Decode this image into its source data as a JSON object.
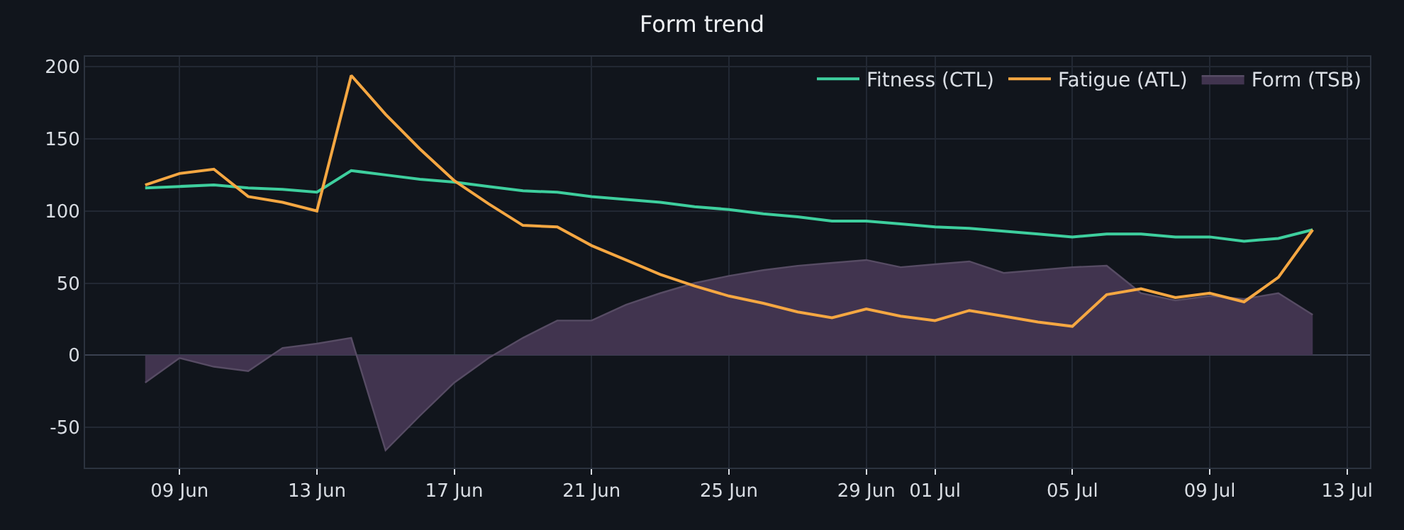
{
  "chart_data": {
    "type": "line",
    "title": "Form trend",
    "x": [
      "--06-08",
      "--06-09",
      "--06-10",
      "--06-11",
      "--06-12",
      "--06-13",
      "--06-14",
      "--06-15",
      "--06-16",
      "--06-17",
      "--06-18",
      "--06-19",
      "--06-20",
      "--06-21",
      "--06-22",
      "--06-23",
      "--06-24",
      "--06-25",
      "--06-26",
      "--06-27",
      "--06-28",
      "--06-29",
      "--06-30",
      "--07-01",
      "--07-02",
      "--07-03",
      "--07-04",
      "--07-05",
      "--07-06",
      "--07-07",
      "--07-08",
      "--07-09",
      "--07-10",
      "--07-11",
      "--07-12"
    ],
    "series": [
      {
        "name": "Fitness (CTL)",
        "color": "#3ecf9e",
        "values": [
          116,
          117,
          118,
          116,
          115,
          113,
          128,
          125,
          122,
          120,
          117,
          114,
          113,
          110,
          108,
          106,
          103,
          101,
          98,
          96,
          93,
          93,
          91,
          89,
          88,
          86,
          84,
          82,
          84,
          84,
          82,
          82,
          79,
          81,
          87
        ]
      },
      {
        "name": "Fatigue (ATL)",
        "color": "#f5a742",
        "values": [
          118,
          126,
          129,
          110,
          106,
          100,
          194,
          167,
          143,
          121,
          105,
          90,
          89,
          76,
          66,
          56,
          48,
          41,
          36,
          30,
          26,
          32,
          27,
          24,
          31,
          27,
          23,
          20,
          42,
          46,
          40,
          43,
          37,
          54,
          87
        ]
      },
      {
        "name": "Form (TSB)",
        "type": "area",
        "color": "#41344f",
        "values": [
          -19,
          -2,
          -8,
          -11,
          5,
          8,
          12,
          -66,
          -42,
          -19,
          -2,
          12,
          24,
          24,
          35,
          43,
          50,
          55,
          59,
          62,
          64,
          66,
          61,
          63,
          65,
          57,
          59,
          61,
          62,
          43,
          38,
          41,
          39,
          43,
          28
        ]
      }
    ],
    "xlim": [
      "--06-06T06:00",
      "--07-13T16:00"
    ],
    "xticks": [
      {
        "value": "--06-09",
        "label": "09 Jun"
      },
      {
        "value": "--06-13",
        "label": "13 Jun"
      },
      {
        "value": "--06-17",
        "label": "17 Jun"
      },
      {
        "value": "--06-21",
        "label": "21 Jun"
      },
      {
        "value": "--06-25",
        "label": "25 Jun"
      },
      {
        "value": "--06-29",
        "label": "29 Jun"
      },
      {
        "value": "--07-01",
        "label": "01 Jul"
      },
      {
        "value": "--07-05",
        "label": "05 Jul"
      },
      {
        "value": "--07-09",
        "label": "09 Jul"
      },
      {
        "value": "--07-13",
        "label": "13 Jul"
      }
    ],
    "ylim": [
      -78,
      207
    ],
    "yticks": [
      -50,
      0,
      50,
      100,
      150,
      200
    ],
    "grid": true,
    "legend": "top right",
    "marker": "none",
    "line_style": "solid"
  }
}
